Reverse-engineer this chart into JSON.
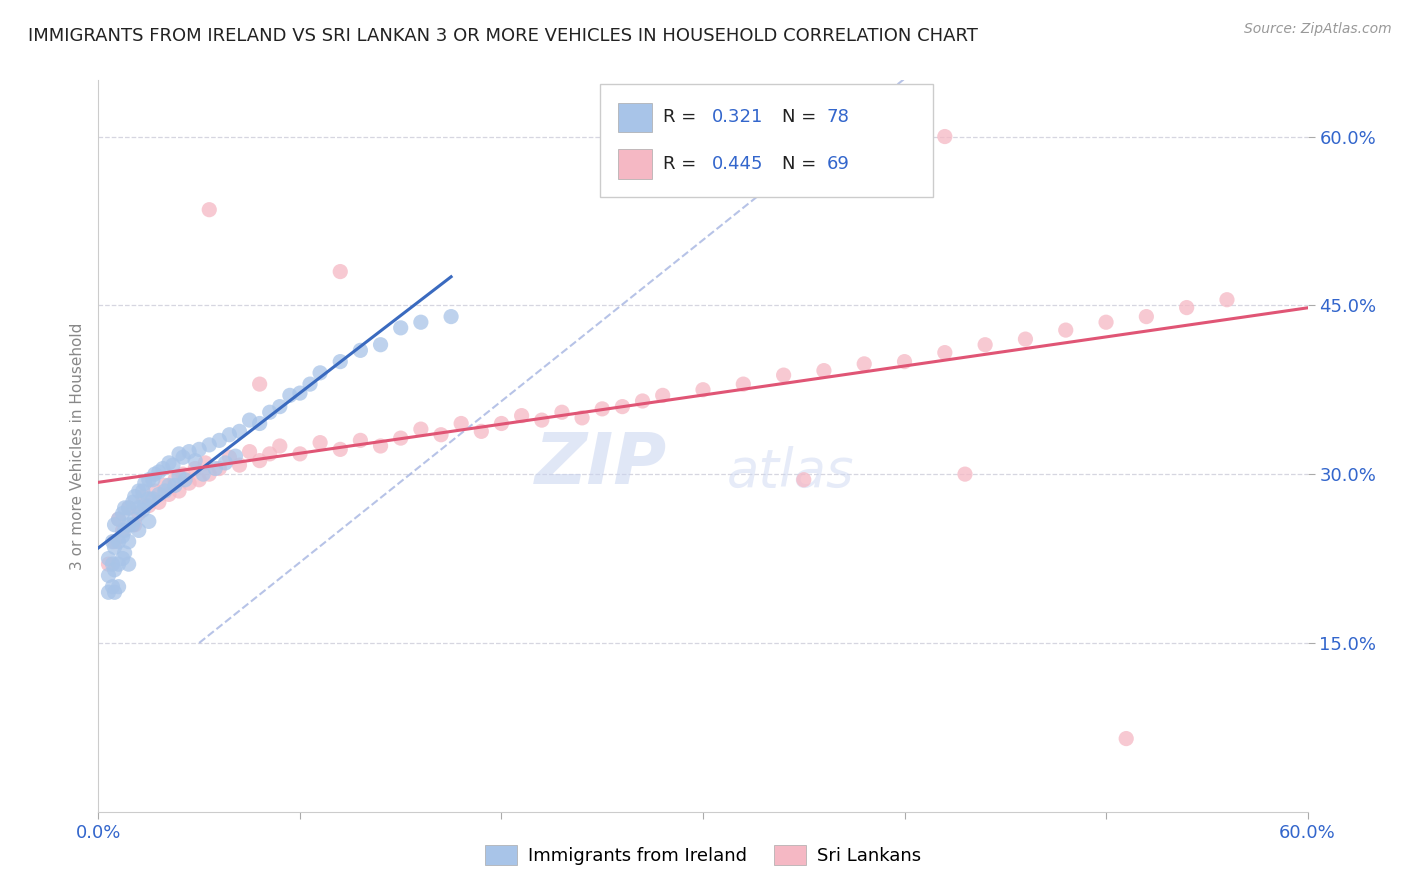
{
  "title": "IMMIGRANTS FROM IRELAND VS SRI LANKAN 3 OR MORE VEHICLES IN HOUSEHOLD CORRELATION CHART",
  "source": "Source: ZipAtlas.com",
  "ylabel": "3 or more Vehicles in Household",
  "series1_name": "Immigrants from Ireland",
  "series1_color": "#a8c4e8",
  "series1_line_color": "#3a6abf",
  "series1_R": "0.321",
  "series1_N": "78",
  "series2_name": "Sri Lankans",
  "series2_color": "#f5b8c4",
  "series2_line_color": "#e05575",
  "series2_R": "0.445",
  "series2_N": "69",
  "watermark_zip": "ZIP",
  "watermark_atlas": "atlas",
  "legend_R_color": "#3366cc",
  "legend_N_color": "#3366cc",
  "legend_text_color": "#111111",
  "axis_label_color": "#3366cc",
  "title_color": "#222222",
  "xlim": [
    0.0,
    0.6
  ],
  "ylim": [
    0.0,
    0.65
  ],
  "ytick_positions": [
    0.15,
    0.3,
    0.45,
    0.6
  ],
  "ytick_labels": [
    "15.0%",
    "30.0%",
    "45.0%",
    "60.0%"
  ],
  "xtick_positions": [
    0.0,
    0.1,
    0.2,
    0.3,
    0.4,
    0.5,
    0.6
  ],
  "xtick_labels": [
    "0.0%",
    "",
    "",
    "",
    "",
    "",
    "60.0%"
  ]
}
